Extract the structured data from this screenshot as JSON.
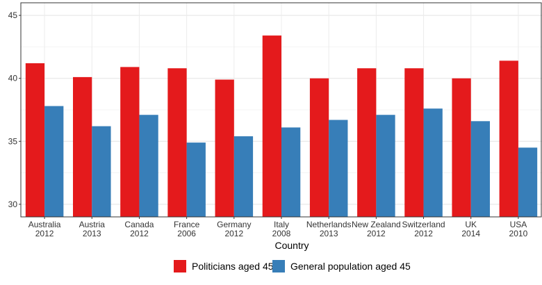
{
  "chart_data": {
    "type": "bar",
    "categories": [
      [
        "Australia",
        "2012"
      ],
      [
        "Austria",
        "2013"
      ],
      [
        "Canada",
        "2012"
      ],
      [
        "France",
        "2006"
      ],
      [
        "Germany",
        "2012"
      ],
      [
        "Italy",
        "2008"
      ],
      [
        "Netherlands",
        "2013"
      ],
      [
        "New Zealand",
        "2012"
      ],
      [
        "Switzerland",
        "2012"
      ],
      [
        "UK",
        "2014"
      ],
      [
        "USA",
        "2010"
      ]
    ],
    "series": [
      {
        "name": "Politicians aged 45",
        "color": "#e41a1c",
        "values": [
          41.2,
          40.1,
          40.9,
          40.8,
          39.9,
          43.4,
          40.0,
          40.8,
          40.8,
          40.0,
          41.4
        ]
      },
      {
        "name": "General population aged 45",
        "color": "#377eb8",
        "values": [
          37.8,
          36.2,
          37.1,
          34.9,
          35.4,
          36.1,
          36.7,
          37.1,
          37.6,
          36.6,
          34.5
        ]
      }
    ],
    "title": "",
    "xlabel": "Country",
    "ylabel": "",
    "ylim": [
      29,
      46
    ],
    "yticks": [
      30,
      35,
      40,
      45
    ],
    "grid": true,
    "legend_position": "bottom"
  }
}
